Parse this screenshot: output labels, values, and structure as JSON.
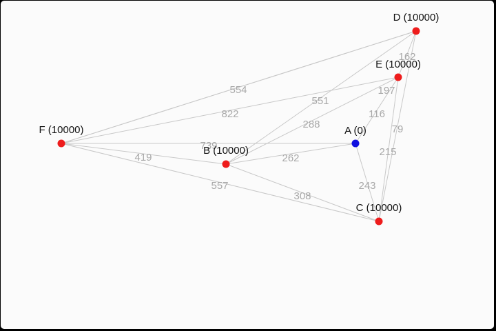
{
  "graph": {
    "colors": {
      "visited": "#1010e0",
      "unvisited": "#ee1c1c",
      "edge": "#c8c8c8",
      "weight_text": "#a8a8a8"
    },
    "nodes": [
      {
        "id": "A",
        "label": "A (0)",
        "state": "visited"
      },
      {
        "id": "B",
        "label": "B (10000)",
        "state": "unvisited"
      },
      {
        "id": "C",
        "label": "C (10000)",
        "state": "unvisited"
      },
      {
        "id": "D",
        "label": "D (10000)",
        "state": "unvisited"
      },
      {
        "id": "E",
        "label": "E (10000)",
        "state": "unvisited"
      },
      {
        "id": "F",
        "label": "F (10000)",
        "state": "unvisited"
      }
    ],
    "edges": [
      {
        "from": "D",
        "to": "E",
        "weight": "162"
      },
      {
        "from": "D",
        "to": "F",
        "weight": "554"
      },
      {
        "from": "E",
        "to": "F",
        "weight": "822"
      },
      {
        "from": "B",
        "to": "D",
        "weight": "551"
      },
      {
        "from": "B",
        "to": "E",
        "weight": "288"
      },
      {
        "from": "A",
        "to": "E",
        "weight": "116"
      },
      {
        "from": "D",
        "to": "C",
        "weight": "79"
      },
      {
        "from": "E",
        "to": "C",
        "weight": "215"
      },
      {
        "from": "F",
        "to": "A",
        "weight": "739"
      },
      {
        "from": "F",
        "to": "B",
        "weight": "419"
      },
      {
        "from": "B",
        "to": "A",
        "weight": "262"
      },
      {
        "from": "A",
        "to": "C",
        "weight": "243"
      },
      {
        "from": "F",
        "to": "C",
        "weight": "557"
      },
      {
        "from": "B",
        "to": "C",
        "weight": "308"
      },
      {
        "from": "F",
        "to": "D",
        "weight": "197"
      }
    ]
  }
}
